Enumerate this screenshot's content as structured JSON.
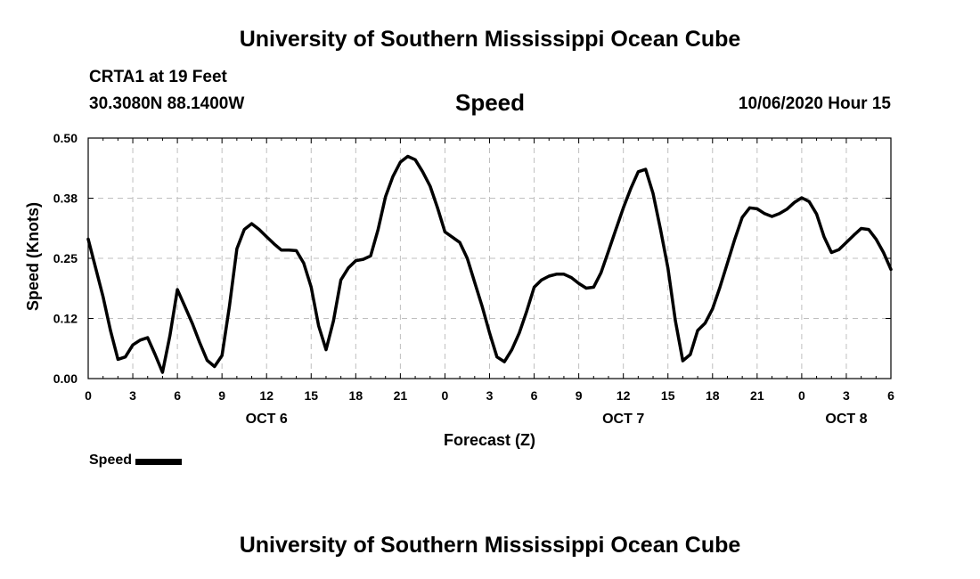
{
  "header": {
    "title": "University of Southern Mississippi Ocean Cube",
    "station": "CRTA1 at 19 Feet",
    "coordinates": "30.3080N 88.1400W",
    "datetime": "10/06/2020 Hour 15"
  },
  "footer": {
    "title": "University of Southern Mississippi Ocean Cube"
  },
  "chart_data": {
    "type": "line",
    "title": "Speed",
    "xlabel": "Forecast (Z)",
    "ylabel": "Speed (Knots)",
    "xlim": [
      0,
      54
    ],
    "ylim": [
      0,
      0.5
    ],
    "yticks": [
      0.0,
      0.125,
      0.25,
      0.375,
      0.5
    ],
    "ytick_labels": [
      "0.00",
      "0.12",
      "0.25",
      "0.38",
      "0.50"
    ],
    "xticks": [
      0,
      3,
      6,
      9,
      12,
      15,
      18,
      21,
      24,
      27,
      30,
      33,
      36,
      39,
      42,
      45,
      48,
      51,
      54
    ],
    "xtick_labels": [
      "0",
      "3",
      "6",
      "9",
      "12",
      "15",
      "18",
      "21",
      "0",
      "3",
      "6",
      "9",
      "12",
      "15",
      "18",
      "21",
      "0",
      "3",
      "6"
    ],
    "date_labels": [
      {
        "x": 12,
        "label": "OCT 6"
      },
      {
        "x": 36,
        "label": "OCT 7"
      },
      {
        "x": 51,
        "label": "OCT 8"
      }
    ],
    "grid": true,
    "legend": {
      "label": "Speed",
      "position": "bottom-left"
    },
    "series": [
      {
        "name": "Speed",
        "color": "#000000",
        "x": [
          0,
          1,
          1.5,
          2,
          2.5,
          3,
          3.5,
          4,
          4.5,
          5,
          5.5,
          6,
          6.5,
          7,
          7.5,
          8,
          8.5,
          9,
          9.5,
          10,
          10.5,
          11,
          11.5,
          12,
          12.5,
          13,
          13.5,
          14,
          14.5,
          15,
          15.5,
          16,
          16.5,
          17,
          17.5,
          18,
          18.5,
          19,
          19.5,
          20,
          20.5,
          21,
          21.5,
          22,
          22.5,
          23,
          23.5,
          24,
          25,
          25.5,
          26,
          26.5,
          27,
          27.5,
          28,
          28.5,
          29,
          29.5,
          30,
          30.5,
          31,
          31.5,
          32,
          32.5,
          33,
          33.5,
          34,
          34.5,
          35,
          35.5,
          36,
          36.5,
          37,
          37.5,
          38,
          38.5,
          39,
          39.5,
          40,
          40.5,
          41,
          41.5,
          42,
          42.5,
          43,
          43.5,
          44,
          44.5,
          45,
          45.5,
          46,
          46.5,
          47,
          47.5,
          48,
          48.5,
          49,
          49.5,
          50,
          50.5,
          51,
          51.5,
          52,
          52.5,
          53,
          53.5,
          54
        ],
        "values": [
          0.29,
          0.17,
          0.1,
          0.04,
          0.045,
          0.07,
          0.08,
          0.085,
          0.05,
          0.013,
          0.09,
          0.185,
          0.15,
          0.115,
          0.075,
          0.038,
          0.025,
          0.048,
          0.15,
          0.27,
          0.31,
          0.322,
          0.31,
          0.295,
          0.28,
          0.267,
          0.267,
          0.266,
          0.24,
          0.19,
          0.11,
          0.06,
          0.12,
          0.205,
          0.23,
          0.245,
          0.248,
          0.255,
          0.31,
          0.378,
          0.42,
          0.45,
          0.462,
          0.455,
          0.43,
          0.4,
          0.355,
          0.305,
          0.283,
          0.25,
          0.2,
          0.15,
          0.095,
          0.045,
          0.035,
          0.06,
          0.095,
          0.14,
          0.19,
          0.205,
          0.213,
          0.217,
          0.217,
          0.21,
          0.198,
          0.188,
          0.19,
          0.22,
          0.265,
          0.31,
          0.355,
          0.395,
          0.43,
          0.435,
          0.385,
          0.31,
          0.23,
          0.12,
          0.037,
          0.05,
          0.1,
          0.115,
          0.145,
          0.19,
          0.24,
          0.29,
          0.335,
          0.355,
          0.353,
          0.343,
          0.337,
          0.343,
          0.352,
          0.366,
          0.376,
          0.368,
          0.342,
          0.295,
          0.262,
          0.268,
          0.283,
          0.298,
          0.312,
          0.31,
          0.29,
          0.262,
          0.227
        ]
      }
    ]
  }
}
